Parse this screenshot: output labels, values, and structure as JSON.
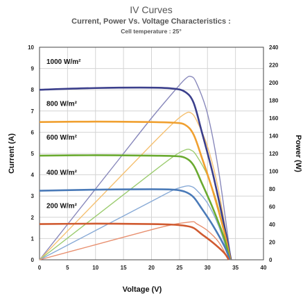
{
  "chart_data": {
    "type": "line",
    "title": "IV Curves",
    "subtitle": "Current, Power Vs. Voltage Characteristics :",
    "note": "Cell temperature :  25°",
    "xlabel": "Voltage (V)",
    "ylabel": "Current (A)",
    "y2label": "Power (W)",
    "xlim": [
      0,
      40
    ],
    "ylim": [
      0,
      10
    ],
    "y2lim": [
      0,
      240
    ],
    "x_ticks": [
      "0",
      "5",
      "10",
      "15",
      "20",
      "25",
      "30",
      "35",
      "40"
    ],
    "y_ticks": [
      "0",
      "1",
      "2",
      "3",
      "4",
      "5",
      "6",
      "7",
      "8",
      "9",
      "10"
    ],
    "y2_ticks": [
      "0",
      "20",
      "40",
      "60",
      "80",
      "100",
      "120",
      "140",
      "160",
      "180",
      "200",
      "220",
      "240"
    ],
    "grid": true,
    "current_series": [
      {
        "name": "1000 W/m²",
        "color": "#3b3f8c",
        "x": [
          0,
          10,
          20,
          24,
          26,
          27.5,
          29,
          31,
          33,
          34.2
        ],
        "y": [
          8.0,
          8.08,
          8.1,
          8.05,
          7.9,
          7.4,
          6.0,
          4.0,
          1.6,
          0
        ]
      },
      {
        "name": "800 W/m²",
        "color": "#f0a030",
        "x": [
          0,
          10,
          20,
          24,
          26,
          27.5,
          29,
          31,
          33,
          34.1
        ],
        "y": [
          6.48,
          6.5,
          6.48,
          6.45,
          6.35,
          5.9,
          4.8,
          3.2,
          1.3,
          0
        ]
      },
      {
        "name": "600 W/m²",
        "color": "#6aaa30",
        "x": [
          0,
          10,
          20,
          24,
          26,
          27.5,
          29,
          31,
          33,
          34.0
        ],
        "y": [
          4.9,
          4.92,
          4.9,
          4.88,
          4.8,
          4.45,
          3.6,
          2.4,
          1.0,
          0
        ]
      },
      {
        "name": "400 W/m²",
        "color": "#4a7ab8",
        "x": [
          0,
          10,
          20,
          24,
          26,
          27.5,
          29,
          31,
          33,
          34.0
        ],
        "y": [
          3.25,
          3.3,
          3.32,
          3.3,
          3.2,
          2.95,
          2.4,
          1.6,
          0.65,
          0
        ]
      },
      {
        "name": "200 W/m²",
        "color": "#d05a30",
        "x": [
          0,
          10,
          20,
          24,
          26,
          27.5,
          29,
          31,
          33,
          33.8
        ],
        "y": [
          1.68,
          1.7,
          1.68,
          1.65,
          1.6,
          1.5,
          1.2,
          0.8,
          0.32,
          0
        ]
      }
    ],
    "power_series": [
      {
        "name": "1000 W/m²",
        "color": "#8888bb",
        "x": [
          0,
          5,
          10,
          15,
          20,
          24,
          26,
          27,
          28,
          30,
          32,
          34.2
        ],
        "y": [
          0,
          40,
          80,
          120,
          160,
          190,
          204,
          207,
          200,
          165,
          100,
          0
        ]
      },
      {
        "name": "800 W/m²",
        "color": "#f5c070",
        "x": [
          0,
          10,
          20,
          24,
          26,
          27,
          28,
          30,
          32,
          34.1
        ],
        "y": [
          0,
          65,
          130,
          155,
          165,
          166,
          158,
          128,
          78,
          0
        ]
      },
      {
        "name": "600 W/m²",
        "color": "#9ccc70",
        "x": [
          0,
          10,
          20,
          24,
          26,
          27,
          28,
          30,
          32,
          34.0
        ],
        "y": [
          0,
          49,
          98,
          117,
          124,
          124,
          118,
          95,
          58,
          0
        ]
      },
      {
        "name": "400 W/m²",
        "color": "#88aad6",
        "x": [
          0,
          10,
          20,
          24,
          26,
          27,
          28,
          30,
          32,
          34.0
        ],
        "y": [
          0,
          33,
          66,
          79,
          83,
          83,
          79,
          64,
          38,
          0
        ]
      },
      {
        "name": "200 W/m²",
        "color": "#e89070",
        "x": [
          0,
          10,
          20,
          24,
          26,
          27.5,
          28,
          30,
          32,
          33.8
        ],
        "y": [
          0,
          17,
          34,
          40,
          42,
          43,
          41,
          33,
          20,
          0
        ]
      }
    ]
  }
}
